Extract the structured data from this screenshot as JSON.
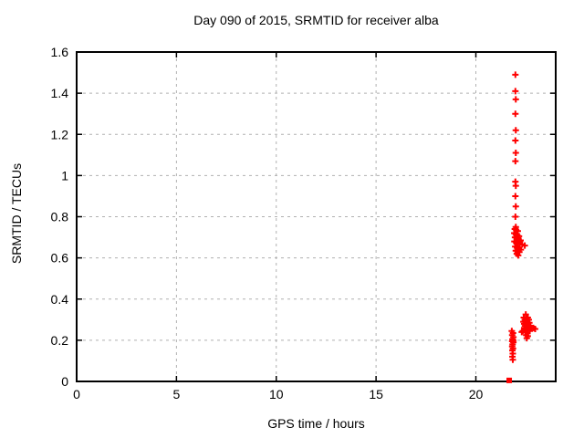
{
  "window": {
    "background": "#ffffff"
  },
  "chart_data": {
    "type": "scatter",
    "title": "Day 090 of 2015, SRMTID for receiver alba",
    "xlabel": "GPS time / hours",
    "ylabel": "SRMTID / TECUs",
    "xlim": [
      0,
      24
    ],
    "ylim": [
      0,
      1.6
    ],
    "xticks": {
      "values": [
        0,
        5,
        10,
        15,
        20
      ],
      "labels": [
        "0",
        "5",
        "10",
        "15",
        "20"
      ]
    },
    "yticks": {
      "values": [
        0,
        0.2,
        0.4,
        0.6,
        0.8,
        1.0,
        1.2,
        1.4,
        1.6
      ],
      "labels": [
        "0",
        "0.2",
        "0.4",
        "0.6",
        "0.8",
        "1",
        "1.2",
        "1.4",
        "1.6"
      ]
    },
    "grid": true,
    "legend": "none",
    "colors": {
      "marker": "#ff0000",
      "axis": "#000000",
      "grid": "#b0b0b0",
      "text": "#000000"
    },
    "series": [
      {
        "name": "srmtid-plus-markers",
        "marker": "plus",
        "color": "#ff0000",
        "points": [
          [
            21.98,
            1.49
          ],
          [
            21.98,
            1.41
          ],
          [
            22.0,
            1.37
          ],
          [
            21.98,
            1.3
          ],
          [
            22.0,
            1.22
          ],
          [
            21.98,
            1.17
          ],
          [
            22.0,
            1.11
          ],
          [
            21.98,
            1.07
          ],
          [
            21.98,
            0.97
          ],
          [
            22.0,
            0.95
          ],
          [
            21.98,
            0.9
          ],
          [
            22.0,
            0.85
          ],
          [
            21.98,
            0.8
          ],
          [
            22.0,
            0.75
          ],
          [
            21.95,
            0.74
          ],
          [
            22.02,
            0.735
          ],
          [
            22.1,
            0.73
          ],
          [
            21.92,
            0.72
          ],
          [
            22.0,
            0.715
          ],
          [
            22.08,
            0.71
          ],
          [
            22.16,
            0.705
          ],
          [
            21.96,
            0.7
          ],
          [
            22.05,
            0.695
          ],
          [
            22.14,
            0.69
          ],
          [
            22.24,
            0.685
          ],
          [
            21.93,
            0.68
          ],
          [
            22.02,
            0.675
          ],
          [
            22.11,
            0.67
          ],
          [
            22.2,
            0.668
          ],
          [
            22.32,
            0.665
          ],
          [
            22.45,
            0.66
          ],
          [
            21.97,
            0.655
          ],
          [
            22.06,
            0.65
          ],
          [
            22.15,
            0.645
          ],
          [
            22.25,
            0.64
          ],
          [
            22.0,
            0.635
          ],
          [
            22.09,
            0.63
          ],
          [
            22.18,
            0.628
          ],
          [
            22.05,
            0.62
          ],
          [
            22.12,
            0.612
          ],
          [
            21.8,
            0.245
          ],
          [
            21.86,
            0.235
          ],
          [
            21.82,
            0.225
          ],
          [
            21.88,
            0.215
          ],
          [
            21.83,
            0.205
          ],
          [
            21.87,
            0.2
          ],
          [
            21.82,
            0.195
          ],
          [
            21.88,
            0.19
          ],
          [
            21.84,
            0.18
          ],
          [
            21.82,
            0.17
          ],
          [
            21.86,
            0.16
          ],
          [
            21.83,
            0.15
          ],
          [
            21.85,
            0.135
          ],
          [
            21.83,
            0.12
          ],
          [
            21.85,
            0.105
          ],
          [
            22.4,
            0.31
          ],
          [
            22.5,
            0.325
          ],
          [
            22.6,
            0.31
          ],
          [
            22.45,
            0.3
          ],
          [
            22.55,
            0.305
          ],
          [
            22.65,
            0.3
          ],
          [
            22.38,
            0.29
          ],
          [
            22.48,
            0.295
          ],
          [
            22.58,
            0.29
          ],
          [
            22.68,
            0.285
          ],
          [
            22.42,
            0.28
          ],
          [
            22.52,
            0.28
          ],
          [
            22.62,
            0.275
          ],
          [
            22.72,
            0.27
          ],
          [
            22.46,
            0.27
          ],
          [
            22.56,
            0.265
          ],
          [
            22.66,
            0.26
          ],
          [
            22.78,
            0.26
          ],
          [
            22.88,
            0.26
          ],
          [
            22.97,
            0.255
          ],
          [
            22.42,
            0.26
          ],
          [
            22.5,
            0.255
          ],
          [
            22.6,
            0.25
          ],
          [
            22.7,
            0.245
          ],
          [
            22.48,
            0.24
          ],
          [
            22.58,
            0.235
          ],
          [
            22.52,
            0.225
          ],
          [
            22.6,
            0.22
          ],
          [
            22.55,
            0.21
          ],
          [
            22.35,
            0.245
          ],
          [
            22.3,
            0.24
          ]
        ]
      },
      {
        "name": "srmtid-square-marker",
        "marker": "square",
        "color": "#ff0000",
        "points": [
          [
            21.67,
            0.005
          ]
        ]
      }
    ]
  }
}
